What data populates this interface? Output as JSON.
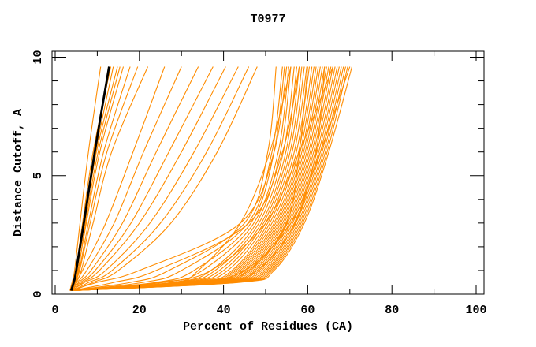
{
  "chart_data": {
    "type": "line",
    "title": "T0977",
    "xlabel": "Percent of Residues (CA)",
    "ylabel": "Distance Cutoff, A",
    "xlim": [
      0,
      100
    ],
    "ylim": [
      0,
      10
    ],
    "x_ticks": [
      0,
      20,
      40,
      60,
      80,
      100
    ],
    "x_minor_tick_step": 10,
    "y_ticks": [
      0,
      5,
      10
    ],
    "y_minor_tick_step": 1,
    "grid": false,
    "legend": "none",
    "colors": {
      "background": "#ffffff",
      "frame": "#000000",
      "models": "#ff8c00",
      "reference": "#000000"
    },
    "cutoff_anchors": [
      0.15,
      0.5,
      1,
      3,
      6,
      9.6
    ],
    "reference_curve": {
      "name": "reference-model",
      "x_at_cutoffs": [
        3.8,
        4.4,
        5.0,
        6.8,
        9.4,
        12.8
      ]
    },
    "model_curves": [
      [
        3.5,
        4.0,
        4.6,
        5.9,
        7.9,
        10.8
      ],
      [
        3.6,
        4.2,
        4.9,
        6.5,
        9.0,
        13.2
      ],
      [
        3.7,
        4.3,
        5.1,
        7.0,
        9.8,
        14.8
      ],
      [
        3.7,
        4.4,
        5.2,
        6.9,
        9.6,
        13.8
      ],
      [
        3.8,
        4.5,
        5.4,
        7.4,
        10.6,
        16.2
      ],
      [
        3.9,
        4.6,
        5.5,
        7.2,
        10.2,
        15.4
      ],
      [
        3.9,
        4.7,
        5.7,
        7.9,
        11.5,
        17.8
      ],
      [
        3.6,
        4.6,
        5.8,
        8.3,
        12.3,
        19.6
      ],
      [
        4.0,
        5.0,
        6.2,
        9.0,
        13.4,
        22.0
      ],
      [
        3.6,
        4.8,
        6.5,
        12.0,
        18.5,
        26.0
      ],
      [
        3.8,
        5.2,
        7.5,
        14.0,
        21.0,
        30.0
      ],
      [
        4.0,
        5.6,
        8.5,
        16.0,
        24.0,
        34.0
      ],
      [
        3.7,
        6.0,
        9.5,
        18.0,
        27.0,
        37.5
      ],
      [
        4.1,
        6.5,
        10.5,
        20.0,
        30.0,
        40.5
      ],
      [
        3.9,
        7.0,
        12.0,
        22.5,
        33.0,
        43.5
      ],
      [
        4.2,
        8.0,
        13.5,
        25.0,
        36.0,
        46.0
      ],
      [
        4.4,
        9.0,
        15.0,
        27.5,
        38.5,
        48.0
      ],
      [
        3.5,
        18,
        27,
        45.0,
        50.5,
        52.5
      ],
      [
        3.7,
        10,
        20,
        44.0,
        52.0,
        55.0
      ],
      [
        3.9,
        21,
        30,
        45.8,
        51.5,
        54.0
      ],
      [
        3.6,
        24,
        33,
        46.5,
        52.0,
        54.5
      ],
      [
        4.0,
        14,
        24,
        46.0,
        54.0,
        58.0
      ],
      [
        4.1,
        26,
        35,
        47.2,
        53.0,
        55.5
      ],
      [
        3.7,
        28,
        37,
        47.8,
        53.5,
        56.0
      ],
      [
        4.2,
        28,
        34,
        44.0,
        51.0,
        56.0
      ],
      [
        4.3,
        29,
        38,
        48.4,
        54.2,
        56.8
      ],
      [
        3.8,
        30,
        39,
        49.0,
        54.8,
        57.4
      ],
      [
        4.0,
        31,
        40,
        49.5,
        55.3,
        58.0
      ],
      [
        4.3,
        25,
        37,
        50.0,
        58.0,
        66.0
      ],
      [
        4.4,
        32,
        41,
        50.0,
        55.8,
        58.6
      ],
      [
        3.6,
        33,
        42,
        50.5,
        56.3,
        59.2
      ],
      [
        3.9,
        36,
        46,
        55.0,
        58.0,
        60.0
      ],
      [
        4.2,
        34,
        42.5,
        51.0,
        56.8,
        59.8
      ],
      [
        3.9,
        34.5,
        43,
        51.5,
        57.3,
        60.4
      ],
      [
        4.5,
        35,
        43.5,
        52.0,
        57.8,
        61.0
      ],
      [
        3.8,
        33,
        45,
        56.0,
        63.0,
        70.0
      ],
      [
        3.7,
        35.5,
        44,
        52.4,
        58.2,
        61.5
      ],
      [
        4.1,
        36,
        44.5,
        52.8,
        58.6,
        62.0
      ],
      [
        3.8,
        36.5,
        45,
        53.2,
        59.0,
        62.5
      ],
      [
        4.3,
        37,
        45.5,
        53.6,
        59.4,
        63.0
      ],
      [
        4.0,
        37.5,
        46,
        54.0,
        59.8,
        63.5
      ],
      [
        3.6,
        38,
        46.5,
        54.4,
        60.2,
        64.0
      ],
      [
        4.4,
        38.5,
        47,
        54.8,
        60.6,
        64.5
      ],
      [
        3.9,
        39,
        47.5,
        55.2,
        61.0,
        65.0
      ],
      [
        4.1,
        38,
        48,
        57.0,
        62.0,
        64.0
      ],
      [
        4.2,
        39.5,
        48,
        55.6,
        61.4,
        65.5
      ],
      [
        3.7,
        40,
        48.5,
        56.0,
        61.8,
        66.0
      ],
      [
        4.5,
        40.5,
        49,
        56.4,
        62.2,
        66.5
      ],
      [
        3.8,
        41,
        49.5,
        56.8,
        62.6,
        67.0
      ],
      [
        4.1,
        41.5,
        50,
        57.2,
        63.0,
        67.5
      ],
      [
        3.9,
        42,
        50.4,
        57.6,
        63.4,
        68.0
      ],
      [
        4.3,
        42.5,
        50.8,
        58.0,
        63.8,
        68.5
      ],
      [
        3.6,
        43,
        51.2,
        58.4,
        64.2,
        69.0
      ],
      [
        4.0,
        43.5,
        51.6,
        58.8,
        64.6,
        69.5
      ],
      [
        4.4,
        44,
        52.0,
        59.2,
        65.0,
        70.5
      ]
    ]
  }
}
